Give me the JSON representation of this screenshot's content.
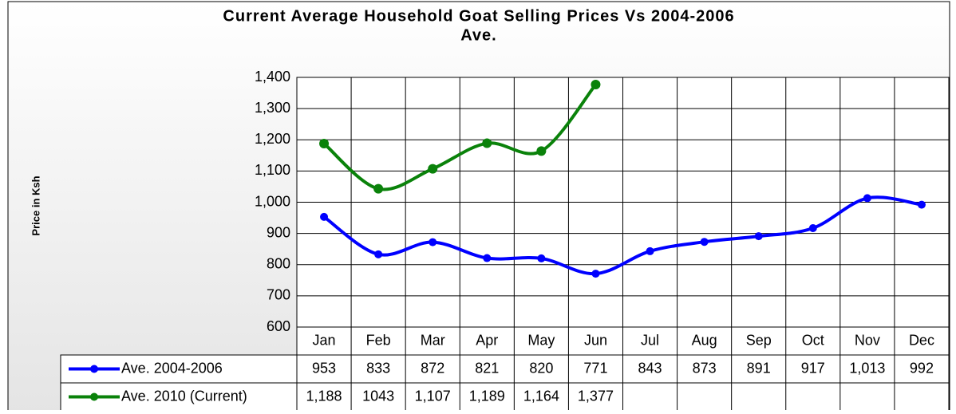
{
  "chart_data": {
    "type": "line",
    "title": "Current Average  Household Goat Selling Prices Vs 2004-2006",
    "title_line2": "Ave.",
    "y_label": "Price in Ksh",
    "categories": [
      "Jan",
      "Feb",
      "Mar",
      "Apr",
      "May",
      "Jun",
      "Jul",
      "Aug",
      "Sep",
      "Oct",
      "Nov",
      "Dec"
    ],
    "series": [
      {
        "name": "Ave. 2004-2006",
        "color": "#0000ff",
        "values": [
          953,
          833,
          872,
          821,
          820,
          771,
          843,
          873,
          891,
          917,
          1013,
          992
        ],
        "value_labels": [
          "953",
          "833",
          "872",
          "821",
          "820",
          "771",
          "843",
          "873",
          "891",
          "917",
          "1,013",
          "992"
        ]
      },
      {
        "name": "Ave. 2010 (Current)",
        "color": "#0a820a",
        "values": [
          1188,
          1043,
          1107,
          1189,
          1164,
          1377,
          null,
          null,
          null,
          null,
          null,
          null
        ],
        "value_labels": [
          "1,188",
          "1043",
          "1,107",
          "1,189",
          "1,164",
          "1,377",
          null,
          null,
          null,
          null,
          null,
          null
        ]
      }
    ],
    "ylim": [
      600,
      1400
    ],
    "yticks": [
      600,
      700,
      800,
      900,
      {
        "value": 1000,
        "label": "1,000"
      },
      {
        "value": 1100,
        "label": "1,100"
      },
      {
        "value": 1200,
        "label": "1,200"
      },
      {
        "value": 1300,
        "label": "1,300"
      },
      {
        "value": 1400,
        "label": "1,400"
      }
    ],
    "grid": true
  }
}
